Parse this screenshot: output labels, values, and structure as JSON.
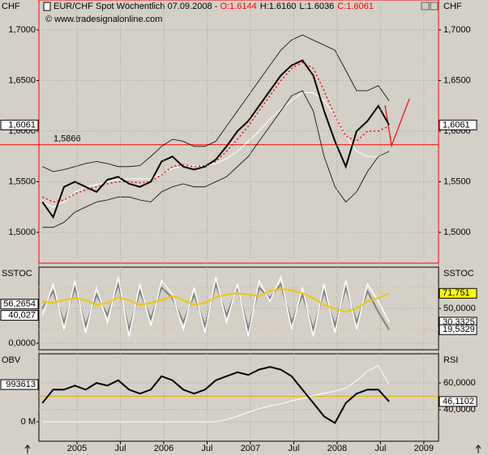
{
  "chart_data": [
    {
      "type": "line",
      "title": "EUR/CHF Spot Wöchentlich  07.09.2008 - ",
      "ohlc": [
        {
          "label": "O:1.6144",
          "color": "#ff0000"
        },
        {
          "label": "H:1.6160",
          "color": "#000000"
        },
        {
          "label": "L:1.6036",
          "color": "#000000"
        },
        {
          "label": "C:1.6061",
          "color": "#ff0000"
        }
      ],
      "source": "© www.tradesignalonline.com",
      "axis_label_left": "CHF",
      "axis_label_right": "CHF",
      "frame_color": "#ff0000",
      "xlim": [
        2004.56,
        2009.17
      ],
      "x": [
        2004.6,
        2004.725,
        2004.85,
        2004.975,
        2005.1,
        2005.225,
        2005.35,
        2005.475,
        2005.6,
        2005.725,
        2005.85,
        2005.975,
        2006.1,
        2006.225,
        2006.35,
        2006.475,
        2006.6,
        2006.725,
        2006.85,
        2006.975,
        2007.1,
        2007.225,
        2007.35,
        2007.475,
        2007.6,
        2007.725,
        2007.85,
        2007.975,
        2008.1,
        2008.225,
        2008.35,
        2008.475,
        2008.6
      ],
      "ylim": [
        1.4696,
        1.7296
      ],
      "yticks": [
        {
          "value": 1.5,
          "label": "1,5000"
        },
        {
          "value": 1.55,
          "label": "1,5500"
        },
        {
          "value": 1.6,
          "label": "1,6000"
        },
        {
          "value": 1.65,
          "label": "1,6500"
        },
        {
          "value": 1.7,
          "label": "1,7000"
        }
      ],
      "tick_sides": [
        "left",
        "right"
      ],
      "grid": true,
      "hlines": [
        {
          "value": 1.5866,
          "label": "1,5866",
          "color": "#ff0000",
          "dash": false
        }
      ],
      "markers": [
        {
          "value": 1.6061,
          "label": "1,6061",
          "side": "left",
          "color": "#ffffff"
        },
        {
          "value": 1.6061,
          "label": "1,6061",
          "side": "right",
          "color": "#ffffff"
        }
      ],
      "series": [
        {
          "color": "#ffffff",
          "width": 1,
          "dash": false,
          "values": [
            1.53,
            1.525,
            1.53,
            1.54,
            1.545,
            1.547,
            1.55,
            1.552,
            1.553,
            1.553,
            1.553,
            1.558,
            1.563,
            1.566,
            1.566,
            1.566,
            1.568,
            1.573,
            1.58,
            1.59,
            1.6,
            1.612,
            1.622,
            1.63,
            1.638,
            1.638,
            1.63,
            1.615,
            1.595,
            1.58,
            1.575,
            1.575,
            1.58
          ]
        },
        {
          "color": "#000000",
          "width": 0.8,
          "dash": false,
          "values": [
            1.565,
            1.56,
            1.562,
            1.565,
            1.568,
            1.57,
            1.568,
            1.565,
            1.565,
            1.566,
            1.575,
            1.585,
            1.592,
            1.59,
            1.585,
            1.585,
            1.59,
            1.605,
            1.62,
            1.635,
            1.65,
            1.665,
            1.68,
            1.69,
            1.695,
            1.69,
            1.685,
            1.68,
            1.66,
            1.64,
            1.64,
            1.645,
            1.63
          ]
        },
        {
          "color": "#000000",
          "width": 0.8,
          "dash": false,
          "values": [
            1.505,
            1.505,
            1.51,
            1.52,
            1.525,
            1.53,
            1.532,
            1.535,
            1.535,
            1.532,
            1.53,
            1.54,
            1.545,
            1.548,
            1.545,
            1.545,
            1.55,
            1.555,
            1.565,
            1.575,
            1.59,
            1.605,
            1.62,
            1.635,
            1.64,
            1.62,
            1.575,
            1.545,
            1.53,
            1.54,
            1.56,
            1.575,
            1.58
          ]
        },
        {
          "color": "#ff0000",
          "width": 1.5,
          "dash": true,
          "values": [
            1.535,
            1.53,
            1.532,
            1.538,
            1.542,
            1.545,
            1.548,
            1.55,
            1.55,
            1.549,
            1.55,
            1.557,
            1.565,
            1.567,
            1.565,
            1.566,
            1.57,
            1.58,
            1.592,
            1.605,
            1.62,
            1.635,
            1.65,
            1.662,
            1.668,
            1.662,
            1.64,
            1.615,
            1.595,
            1.59,
            1.6,
            1.6,
            1.605
          ]
        },
        {
          "color": "#000000",
          "width": 2,
          "dash": false,
          "values": [
            1.53,
            1.515,
            1.545,
            1.55,
            1.545,
            1.54,
            1.552,
            1.555,
            1.548,
            1.545,
            1.55,
            1.57,
            1.575,
            1.565,
            1.562,
            1.565,
            1.572,
            1.585,
            1.6,
            1.61,
            1.625,
            1.64,
            1.655,
            1.665,
            1.67,
            1.655,
            1.62,
            1.59,
            1.565,
            1.6,
            1.61,
            1.625,
            1.6061
          ]
        }
      ]
    },
    {
      "type": "line",
      "axis_label_left": "SSTOC",
      "axis_label_right": "SSTOC",
      "frame_color": "#000000",
      "xlim": [
        2004.56,
        2009.17
      ],
      "x": [
        2004.6,
        2004.725,
        2004.85,
        2004.975,
        2005.1,
        2005.225,
        2005.35,
        2005.475,
        2005.6,
        2005.725,
        2005.85,
        2005.975,
        2006.1,
        2006.225,
        2006.35,
        2006.475,
        2006.6,
        2006.725,
        2006.85,
        2006.975,
        2007.1,
        2007.225,
        2007.35,
        2007.475,
        2007.6,
        2007.725,
        2007.85,
        2007.975,
        2008.1,
        2008.225,
        2008.35,
        2008.475,
        2008.6
      ],
      "ylim": [
        -9.3,
        109.3
      ],
      "yticks": [
        {
          "value": 0,
          "label": "0,0000"
        }
      ],
      "y2lim": [
        -9.3,
        109.3
      ],
      "y2ticks": [
        {
          "value": 50,
          "label": "50,0000"
        }
      ],
      "grid": true,
      "hlines": [
        {
          "value": 80,
          "color": "#e0c000",
          "dash": true
        },
        {
          "value": 20,
          "color": "#e0c000",
          "dash": true
        }
      ],
      "markers": [
        {
          "value": 56.2654,
          "label": "56,2654",
          "side": "left",
          "color": "#ffffff"
        },
        {
          "value": 40.027,
          "label": "40,027",
          "side": "left",
          "color": "#ffffff"
        },
        {
          "value": 71.751,
          "label": "71,751",
          "side": "right",
          "color": "#ffff00"
        },
        {
          "value": 30.3325,
          "label": "30,3325",
          "side": "right",
          "color": "#ffffff"
        },
        {
          "value": 19.5329,
          "label": "19,5329",
          "side": "right",
          "color": "#ffffff"
        }
      ],
      "series": [
        {
          "color": "#808080",
          "width": 2,
          "dash": false,
          "values": [
            50,
            75,
            30,
            80,
            25,
            70,
            40,
            85,
            20,
            75,
            35,
            80,
            65,
            30,
            70,
            25,
            85,
            40,
            80,
            20,
            80,
            65,
            85,
            30,
            70,
            20,
            75,
            25,
            80,
            30,
            75,
            45,
            19.5329
          ]
        },
        {
          "color": "#ffffff",
          "width": 1.5,
          "dash": false,
          "values": [
            40,
            85,
            20,
            90,
            15,
            80,
            30,
            95,
            10,
            85,
            25,
            90,
            70,
            20,
            80,
            15,
            95,
            30,
            85,
            10,
            90,
            60,
            95,
            20,
            80,
            10,
            85,
            15,
            90,
            20,
            85,
            60,
            30.3325
          ]
        },
        {
          "color": "#f0c800",
          "width": 2,
          "dash": false,
          "values": [
            60,
            58,
            62,
            65,
            62,
            55,
            58,
            66,
            62,
            55,
            58,
            62,
            68,
            62,
            55,
            58,
            66,
            70,
            72,
            70,
            68,
            75,
            78,
            76,
            72,
            65,
            55,
            50,
            45,
            50,
            60,
            65,
            71.751
          ]
        }
      ]
    },
    {
      "type": "line",
      "axis_label_left": "OBV",
      "axis_label_right": "RSI",
      "frame_color": "#000000",
      "xlim": [
        2004.56,
        2009.17
      ],
      "xticks": [
        2005,
        {
          "value": 2005.5,
          "label": "Jul"
        },
        2006,
        {
          "value": 2006.5,
          "label": "Jul"
        },
        2007,
        {
          "value": 2007.5,
          "label": "Jul"
        },
        2008,
        {
          "value": 2008.5,
          "label": "Jul"
        },
        2009
      ],
      "x": [
        2004.6,
        2004.725,
        2004.85,
        2004.975,
        2005.1,
        2005.225,
        2005.35,
        2005.475,
        2005.6,
        2005.725,
        2005.85,
        2005.975,
        2006.1,
        2006.225,
        2006.35,
        2006.475,
        2006.6,
        2006.725,
        2006.85,
        2006.975,
        2007.1,
        2007.225,
        2007.35,
        2007.475,
        2007.6,
        2007.725,
        2007.85,
        2007.975,
        2008.1,
        2008.225,
        2008.35,
        2008.475,
        2008.6
      ],
      "ylim": [
        -518400,
        1814000
      ],
      "yticks": [
        {
          "value": 0,
          "label": "0 M"
        }
      ],
      "y2lim": [
        16.4,
        81.8
      ],
      "y2ticks": [
        {
          "value": 40,
          "label": "40,0000"
        },
        {
          "value": 60,
          "label": "60,0000"
        }
      ],
      "grid": true,
      "hlines": [
        {
          "value": 50,
          "axis": "y2",
          "color": "#e0b000",
          "dash": false
        }
      ],
      "markers": [
        {
          "value": 993613,
          "side": "left",
          "color": "#ffffff"
        },
        {
          "value": 46.1102,
          "label": "46,1102",
          "side": "right",
          "axis": "y2",
          "color": "#ffffff"
        }
      ],
      "series": [
        {
          "color": "#ffffff",
          "width": 1,
          "dash": false,
          "values": [
            0,
            0,
            0,
            0,
            0,
            0,
            0,
            0,
            0,
            0,
            0,
            0,
            0,
            0,
            0,
            0,
            0,
            60000,
            150000,
            250000,
            350000,
            420000,
            480000,
            560000,
            620000,
            700000,
            760000,
            820000,
            900000,
            1100000,
            1350000,
            1500000,
            993613
          ]
        },
        {
          "color": "#000000",
          "width": 2,
          "dash": false,
          "axis": "y2",
          "values": [
            45,
            55,
            55,
            58,
            55,
            60,
            58,
            62,
            55,
            52,
            55,
            65,
            62,
            55,
            52,
            55,
            62,
            65,
            68,
            66,
            70,
            72,
            70,
            65,
            55,
            45,
            35,
            30,
            45,
            52,
            55,
            55,
            46.1102
          ]
        }
      ]
    }
  ]
}
